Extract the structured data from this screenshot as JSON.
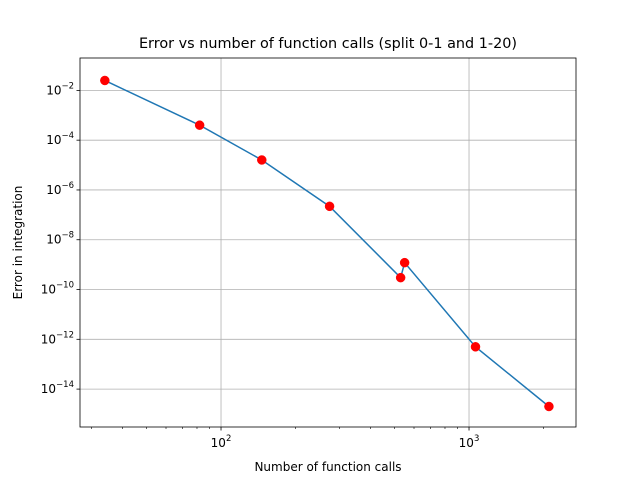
{
  "chart_data": {
    "type": "line",
    "title": "Error vs number of function calls (split 0-1 and 1-20)",
    "xlabel": "Number of function calls",
    "ylabel": "Error in integration",
    "xscale": "log",
    "yscale": "log",
    "xlim": [
      27,
      2700
    ],
    "ylim": [
      3e-16,
      0.2
    ],
    "grid": true,
    "x_ticks": [
      {
        "value": 100,
        "base": "10",
        "exp": "2"
      },
      {
        "value": 1000,
        "base": "10",
        "exp": "3"
      }
    ],
    "y_ticks": [
      {
        "value": 0.01,
        "base": "10",
        "exp": "−2"
      },
      {
        "value": 0.0001,
        "base": "10",
        "exp": "−4"
      },
      {
        "value": 1e-06,
        "base": "10",
        "exp": "−6"
      },
      {
        "value": 1e-08,
        "base": "10",
        "exp": "−8"
      },
      {
        "value": 1e-10,
        "base": "10",
        "exp": "−10"
      },
      {
        "value": 1e-12,
        "base": "10",
        "exp": "−12"
      },
      {
        "value": 1e-14,
        "base": "10",
        "exp": "−14"
      }
    ],
    "line_color": "#1f77b4",
    "marker_color": "#ff0000",
    "series": [
      {
        "x": [
          34,
          82,
          146,
          274,
          530,
          550,
          1062,
          2100
        ],
        "y": [
          0.025,
          0.0004,
          1.6e-05,
          2.2e-07,
          3e-10,
          1.2e-09,
          5e-13,
          2e-15
        ]
      }
    ]
  }
}
